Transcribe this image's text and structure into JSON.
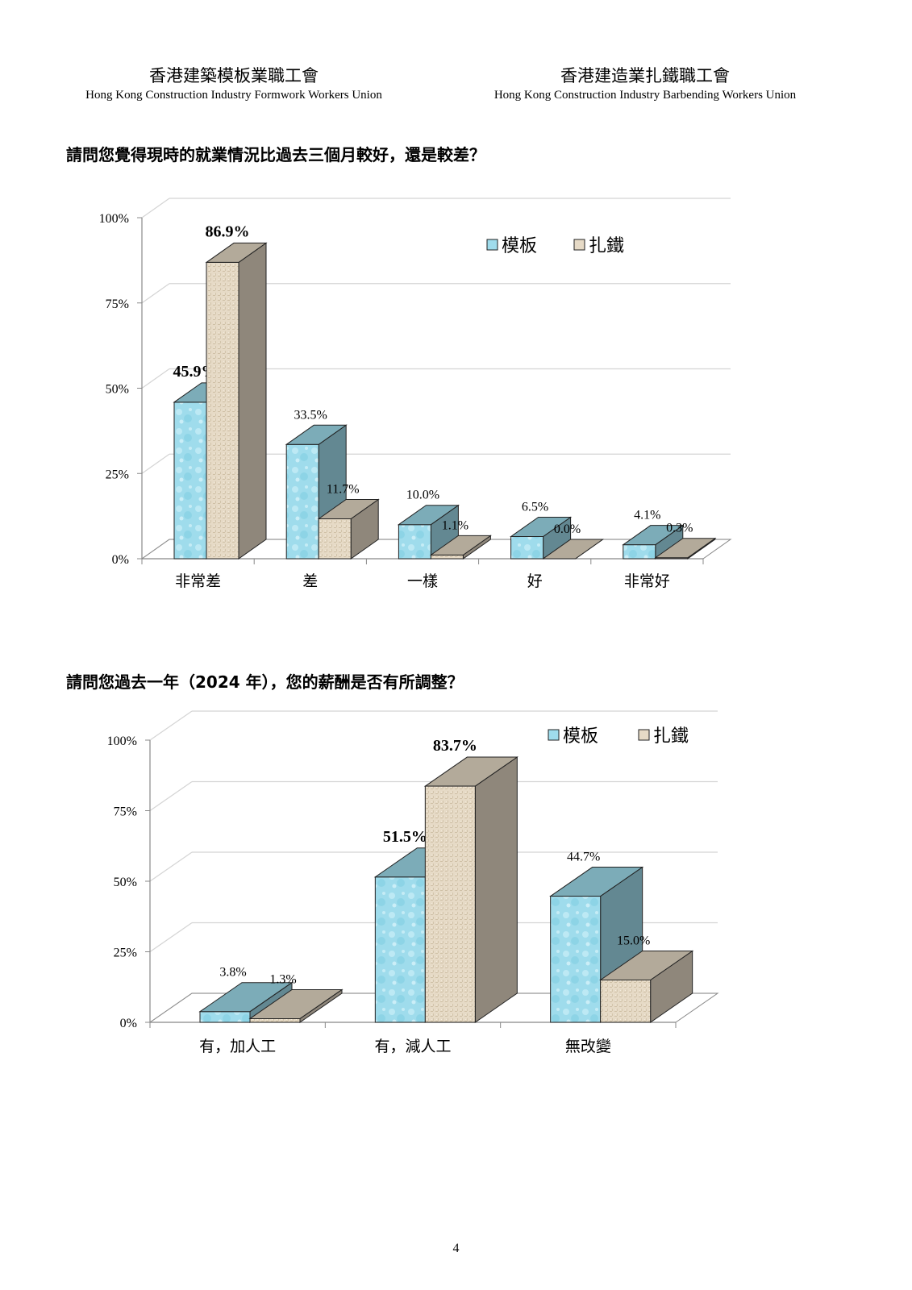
{
  "header": {
    "left": {
      "zh": "香港建築模板業職工會",
      "en": "Hong Kong Construction Industry Formwork Workers Union"
    },
    "right": {
      "zh": "香港建造業扎鐵職工會",
      "en": "Hong Kong Construction Industry Barbending Workers Union"
    }
  },
  "questions": {
    "q1": "請問您覺得現時的就業情況比過去三個月較好，還是較差？",
    "q2": "請問您過去一年（2024 年），您的薪酬是否有所調整？"
  },
  "colors": {
    "formwork": "#9fdcec",
    "barbending": "#e6dac6",
    "grid": "#d4d4d4",
    "axis": "#888888"
  },
  "chart_data": [
    {
      "type": "bar",
      "categories": [
        "非常差",
        "差",
        "一樣",
        "好",
        "非常好"
      ],
      "series": [
        {
          "name": "模板",
          "values": [
            45.9,
            33.5,
            10.0,
            6.5,
            4.1
          ],
          "labels": [
            "45.9%",
            "33.5%",
            "10.0%",
            "6.5%",
            "4.1%"
          ]
        },
        {
          "name": "扎鐵",
          "values": [
            86.9,
            11.7,
            1.1,
            0.0,
            0.3
          ],
          "labels": [
            "86.9%",
            "11.7%",
            "1.1%",
            "0.0%",
            "0.3%"
          ]
        }
      ],
      "yticks": [
        "0%",
        "25%",
        "50%",
        "75%",
        "100%"
      ],
      "ylim": [
        0,
        100
      ],
      "legend_position": "top-right",
      "grid": true
    },
    {
      "type": "bar",
      "categories": [
        "有，加人工",
        "有，減人工",
        "無改變"
      ],
      "series": [
        {
          "name": "模板",
          "values": [
            3.8,
            51.5,
            44.7
          ],
          "labels": [
            "3.8%",
            "51.5%",
            "44.7%"
          ]
        },
        {
          "name": "扎鐵",
          "values": [
            1.3,
            83.7,
            15.0
          ],
          "labels": [
            "1.3%",
            "83.7%",
            "15.0%"
          ]
        }
      ],
      "yticks": [
        "0%",
        "25%",
        "50%",
        "75%",
        "100%"
      ],
      "ylim": [
        0,
        100
      ],
      "legend_position": "top-right",
      "grid": true
    }
  ],
  "page_number": "4"
}
